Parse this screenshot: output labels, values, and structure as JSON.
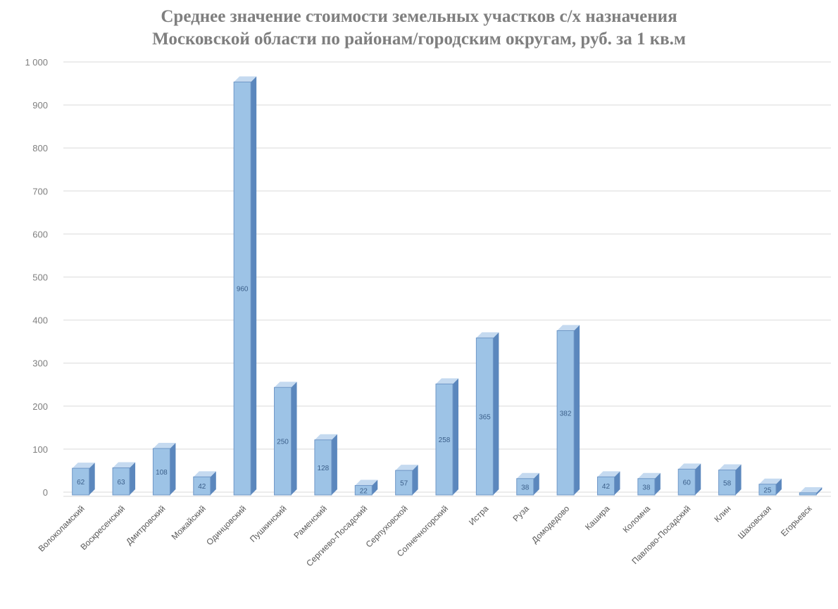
{
  "chart_data": {
    "type": "bar",
    "title_line1": "Среднее значение стоимости земельных участков с/х назначения",
    "title_line2": "Московской области по районам/городским округам, руб. за 1 кв.м",
    "categories": [
      "Волоколамский",
      "Воскресенский",
      "Дмитровский",
      "Можайский",
      "Одинцовский",
      "Пушкинский",
      "Раменский",
      "Сергиево-Посадский",
      "Серпуховской",
      "Солнечногорский",
      "Истра",
      "Руза",
      "Домодедово",
      "Кашира",
      "Коломна",
      "Павлово-Посадский",
      "Клин",
      "Шаховская",
      "Егорьевск"
    ],
    "values": [
      62,
      63,
      108,
      42,
      960,
      250,
      128,
      22,
      57,
      258,
      365,
      38,
      382,
      42,
      38,
      60,
      58,
      25,
      5
    ],
    "ylim": [
      0,
      1000
    ],
    "yticks": [
      "0",
      "100",
      "200",
      "300",
      "400",
      "500",
      "600",
      "700",
      "800",
      "900",
      "1 000"
    ],
    "grid": true,
    "legend": "none",
    "colors": {
      "bar_front": "#9dc3e6",
      "bar_top": "#c5daf0",
      "bar_side": "#5b87bd",
      "gridline": "#e6e6e6"
    }
  }
}
